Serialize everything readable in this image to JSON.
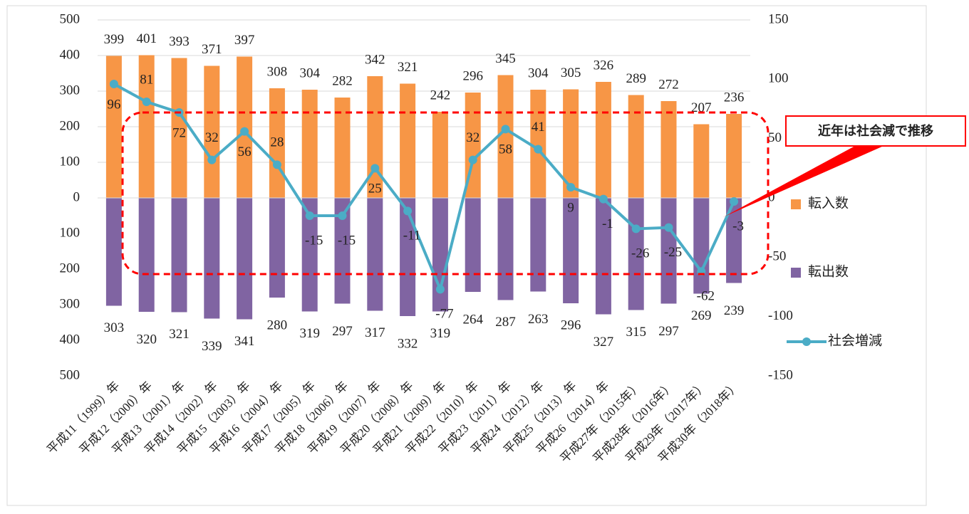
{
  "chart_data": {
    "type": "bar",
    "annotation": "近年は社会減で推移",
    "categories": [
      "平成11（1999）年",
      "平成12（2000）年",
      "平成13（2001）年",
      "平成14（2002）年",
      "平成15（2003）年",
      "平成16（2004）年",
      "平成17（2005）年",
      "平成18（2006）年",
      "平成19（2007）年",
      "平成20（2008）年",
      "平成21（2009）年",
      "平成22（2010）年",
      "平成23（2011）年",
      "平成24（2012）年",
      "平成25（2013）年",
      "平成26（2014）年",
      "平成27年（2015年）",
      "平成28年（2016年）",
      "平成29年（2017年）",
      "平成30年（2018年）"
    ],
    "series": [
      {
        "name": "転入数",
        "color": "#f79646",
        "values": [
          399,
          401,
          393,
          371,
          397,
          308,
          304,
          282,
          342,
          321,
          242,
          296,
          345,
          304,
          305,
          326,
          289,
          272,
          207,
          236
        ]
      },
      {
        "name": "転出数",
        "color": "#8064a2",
        "values": [
          -303,
          -320,
          -321,
          -339,
          -341,
          -280,
          -319,
          -297,
          -317,
          -332,
          -319,
          -264,
          -287,
          -263,
          -296,
          -327,
          -315,
          -297,
          -269,
          -239
        ],
        "value_labels": [
          "303",
          "320",
          "321",
          "339",
          "341",
          "280",
          "319",
          "297",
          "317",
          "332",
          "319",
          "264",
          "287",
          "263",
          "296",
          "327",
          "315",
          "297",
          "269",
          "239"
        ]
      },
      {
        "name": "社会増減",
        "color": "#4bacc6",
        "axis": "y2",
        "type": "line",
        "values": [
          96,
          81,
          72,
          32,
          56,
          28,
          -15,
          -15,
          25,
          -11,
          -77,
          32,
          58,
          41,
          9,
          -1,
          -26,
          -25,
          -62,
          -3
        ]
      }
    ],
    "ylim": [
      -500,
      500
    ],
    "yticks": [
      500,
      400,
      300,
      200,
      100,
      0,
      {
        "value": -100,
        "label": "100"
      },
      {
        "value": -200,
        "label": "200"
      },
      {
        "value": -300,
        "label": "300"
      },
      {
        "value": -400,
        "label": "400"
      },
      {
        "value": -500,
        "label": "500"
      }
    ],
    "y2lim": [
      -150,
      150
    ],
    "y2ticks": [
      150,
      100,
      50,
      0,
      -50,
      -100,
      -150
    ],
    "negative_color": "#ff0000",
    "grid": true,
    "legend": "right"
  }
}
